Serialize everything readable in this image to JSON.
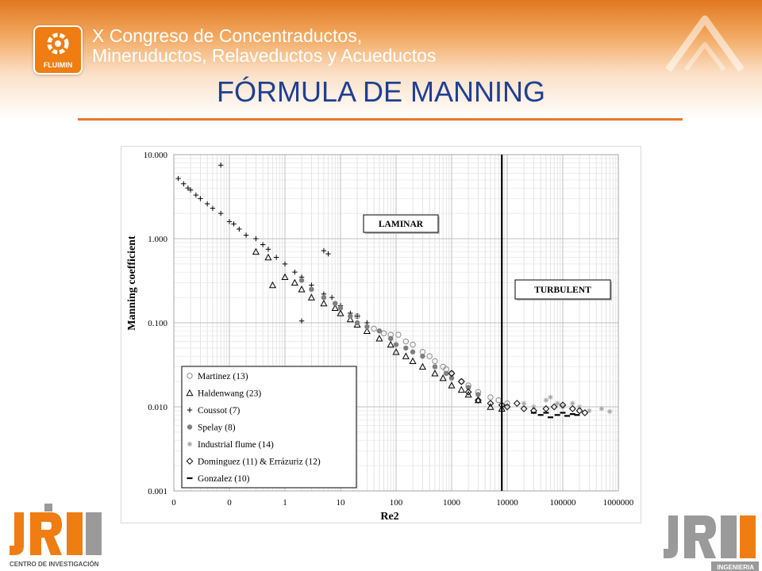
{
  "header": {
    "logo_text": "FLUIMIN",
    "congress_line1": "X Congreso de Concentraductos,",
    "congress_line2": "Mineruductos, Relaveductos y Acueductos",
    "title": "FÓRMULA DE MANNING"
  },
  "footer": {
    "left_logo_caption": "CENTRO DE INVESTIGACIÓN",
    "right_logo_caption": "INGENIERIA"
  },
  "colors": {
    "banner_orange": "#e07820",
    "title_blue": "#1f3f93",
    "rule_orange": "#e9782c",
    "logo_gray": "#9a9a9a",
    "logo_orange": "#ef7d12"
  },
  "chart_data": {
    "type": "scatter",
    "xlabel": "Re2",
    "ylabel": "Manning coefficient",
    "x_scale": "log",
    "y_scale": "log",
    "x_ticks": [
      "0",
      "0",
      "1",
      "10",
      "100",
      "1000",
      "10000",
      "100000",
      "1000000"
    ],
    "y_ticks": [
      "10.000",
      "1.000",
      "0.100",
      "0.010",
      "0.001"
    ],
    "xlim": [
      0.01,
      1000000
    ],
    "ylim": [
      0.001,
      10
    ],
    "grid": true,
    "legend_position": "bottom-left",
    "transition_line_x": 8000,
    "annotations": [
      "LAMINAR",
      "TURBULENT"
    ],
    "series": [
      {
        "name": "Martinez (13)",
        "marker": "circle-open",
        "color": "#8c8c8c",
        "points": [
          [
            20,
            0.12
          ],
          [
            40,
            0.085
          ],
          [
            60,
            0.075
          ],
          [
            80,
            0.072
          ],
          [
            110,
            0.072
          ],
          [
            150,
            0.06
          ],
          [
            200,
            0.055
          ],
          [
            300,
            0.045
          ],
          [
            400,
            0.04
          ],
          [
            500,
            0.035
          ],
          [
            700,
            0.03
          ],
          [
            800,
            0.028
          ],
          [
            1000,
            0.025
          ],
          [
            1500,
            0.02
          ],
          [
            2000,
            0.018
          ],
          [
            3000,
            0.015
          ],
          [
            5000,
            0.013
          ],
          [
            7000,
            0.012
          ],
          [
            10000,
            0.011
          ]
        ]
      },
      {
        "name": "Haldenwang (23)",
        "marker": "triangle-open",
        "color": "#000000",
        "points": [
          [
            0.3,
            0.7
          ],
          [
            0.5,
            0.6
          ],
          [
            0.6,
            0.28
          ],
          [
            1,
            0.35
          ],
          [
            1.5,
            0.3
          ],
          [
            2,
            0.25
          ],
          [
            3,
            0.2
          ],
          [
            5,
            0.17
          ],
          [
            8,
            0.15
          ],
          [
            10,
            0.13
          ],
          [
            15,
            0.11
          ],
          [
            20,
            0.095
          ],
          [
            30,
            0.08
          ],
          [
            50,
            0.065
          ],
          [
            80,
            0.055
          ],
          [
            100,
            0.045
          ],
          [
            150,
            0.04
          ],
          [
            200,
            0.035
          ],
          [
            300,
            0.03
          ],
          [
            500,
            0.025
          ],
          [
            700,
            0.022
          ],
          [
            1000,
            0.018
          ],
          [
            1500,
            0.016
          ],
          [
            2000,
            0.014
          ],
          [
            3000,
            0.012
          ],
          [
            5000,
            0.01
          ],
          [
            8000,
            0.0095
          ]
        ]
      },
      {
        "name": "Coussot (7)",
        "marker": "plus",
        "color": "#000000",
        "points": [
          [
            0.012,
            5.2
          ],
          [
            0.015,
            4.5
          ],
          [
            0.018,
            4
          ],
          [
            0.02,
            3.8
          ],
          [
            0.025,
            3.3
          ],
          [
            0.03,
            3
          ],
          [
            0.04,
            2.6
          ],
          [
            0.05,
            2.3
          ],
          [
            0.07,
            2
          ],
          [
            0.1,
            1.6
          ],
          [
            0.12,
            1.5
          ],
          [
            0.15,
            1.3
          ],
          [
            0.2,
            1.1
          ],
          [
            0.3,
            1
          ],
          [
            0.4,
            0.85
          ],
          [
            0.5,
            0.75
          ],
          [
            0.7,
            0.6
          ],
          [
            1,
            0.5
          ],
          [
            1.5,
            0.4
          ],
          [
            2,
            0.35
          ],
          [
            3,
            0.28
          ],
          [
            5,
            0.22
          ],
          [
            7,
            0.2
          ],
          [
            10,
            0.16
          ],
          [
            15,
            0.13
          ],
          [
            20,
            0.12
          ],
          [
            30,
            0.1
          ],
          [
            50,
            0.08
          ],
          [
            0.07,
            7.5
          ],
          [
            5,
            0.72
          ],
          [
            6,
            0.66
          ],
          [
            2,
            0.105
          ]
        ]
      },
      {
        "name": "Spelay (8)",
        "marker": "dot",
        "color": "#7f7f7f",
        "points": [
          [
            2,
            0.32
          ],
          [
            3,
            0.25
          ],
          [
            5,
            0.2
          ],
          [
            8,
            0.17
          ],
          [
            10,
            0.15
          ],
          [
            15,
            0.12
          ],
          [
            20,
            0.1
          ],
          [
            30,
            0.09
          ],
          [
            50,
            0.08
          ],
          [
            80,
            0.065
          ],
          [
            100,
            0.055
          ],
          [
            150,
            0.05
          ],
          [
            200,
            0.045
          ],
          [
            300,
            0.04
          ],
          [
            500,
            0.03
          ],
          [
            800,
            0.025
          ],
          [
            1000,
            0.022
          ],
          [
            2000,
            0.017
          ],
          [
            3000,
            0.014
          ]
        ]
      },
      {
        "name": "Industrial flume (14)",
        "marker": "asterisk",
        "color": "#a6a6a6",
        "points": [
          [
            20000,
            0.011
          ],
          [
            30000,
            0.01
          ],
          [
            50000,
            0.012
          ],
          [
            60000,
            0.013
          ],
          [
            80000,
            0.011
          ],
          [
            100000,
            0.01
          ],
          [
            150000,
            0.011
          ],
          [
            200000,
            0.01
          ],
          [
            300000,
            0.009
          ],
          [
            500000,
            0.0095
          ],
          [
            700000,
            0.0088
          ]
        ]
      },
      {
        "name": "Dominguez (11) & Errázuriz (12)",
        "marker": "diamond-open",
        "color": "#000000",
        "points": [
          [
            1000,
            0.025
          ],
          [
            1500,
            0.02
          ],
          [
            2000,
            0.015
          ],
          [
            3000,
            0.012
          ],
          [
            5000,
            0.011
          ],
          [
            8000,
            0.0105
          ],
          [
            10000,
            0.01
          ],
          [
            15000,
            0.011
          ],
          [
            20000,
            0.0095
          ],
          [
            30000,
            0.009
          ],
          [
            50000,
            0.0095
          ],
          [
            70000,
            0.01
          ],
          [
            100000,
            0.0105
          ],
          [
            150000,
            0.0095
          ],
          [
            200000,
            0.009
          ],
          [
            250000,
            0.0085
          ]
        ]
      },
      {
        "name": "Gonzalez (10)",
        "marker": "dash",
        "color": "#000000",
        "points": [
          [
            30000,
            0.0085
          ],
          [
            40000,
            0.008
          ],
          [
            50000,
            0.0085
          ],
          [
            60000,
            0.0075
          ],
          [
            80000,
            0.008
          ],
          [
            100000,
            0.0085
          ],
          [
            120000,
            0.0078
          ],
          [
            150000,
            0.0082
          ],
          [
            180000,
            0.008
          ]
        ]
      }
    ]
  }
}
